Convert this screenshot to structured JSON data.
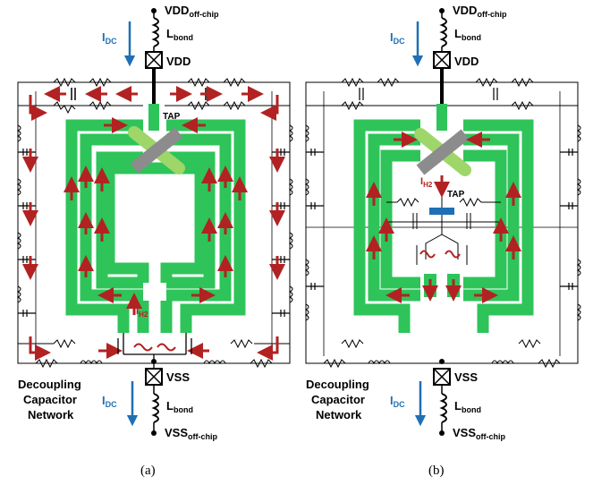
{
  "panels": [
    {
      "caption": "(a)",
      "top_supply": "VDD",
      "top_supply_sub": "off-chip",
      "top_bond": "L",
      "top_bond_sub": "bond",
      "top_pad": "VDD",
      "top_current": "I",
      "top_current_sub": "DC",
      "tap": "TAP",
      "inner_current": "I",
      "inner_current_sub": "H2",
      "bottom_pad": "VSS",
      "bottom_current": "I",
      "bottom_current_sub": "DC",
      "bottom_bond": "L",
      "bottom_bond_sub": "bond",
      "bottom_supply": "VSS",
      "bottom_supply_sub": "off-chip",
      "network_label": [
        "Decoupling",
        "Capacitor",
        "Network"
      ]
    },
    {
      "caption": "(b)",
      "top_supply": "VDD",
      "top_supply_sub": "off-chip",
      "top_bond": "L",
      "top_bond_sub": "bond",
      "top_pad": "VDD",
      "top_current": "I",
      "top_current_sub": "DC",
      "tap": "TAP",
      "inner_current": "I",
      "inner_current_sub": "H2",
      "bottom_pad": "VSS",
      "bottom_current": "I",
      "bottom_current_sub": "DC",
      "bottom_bond": "L",
      "bottom_bond_sub": "bond",
      "bottom_supply": "VSS",
      "bottom_supply_sub": "off-chip",
      "network_label": [
        "Decoupling",
        "Capacitor",
        "Network"
      ]
    }
  ],
  "colors": {
    "trace": "#2ec45a",
    "tap_bar": "#8c8c8c",
    "tap_highlight": "#9ed66a",
    "arrow": "#b22222",
    "dc_arrow": "#1f6fb5",
    "cap_blue": "#1f6fb5"
  },
  "icons": [
    "pad-cross-icon",
    "bond-inductor-icon",
    "resistor-icon",
    "capacitor-icon",
    "inductor-icon",
    "transistor-icon",
    "ac-source-icon"
  ]
}
